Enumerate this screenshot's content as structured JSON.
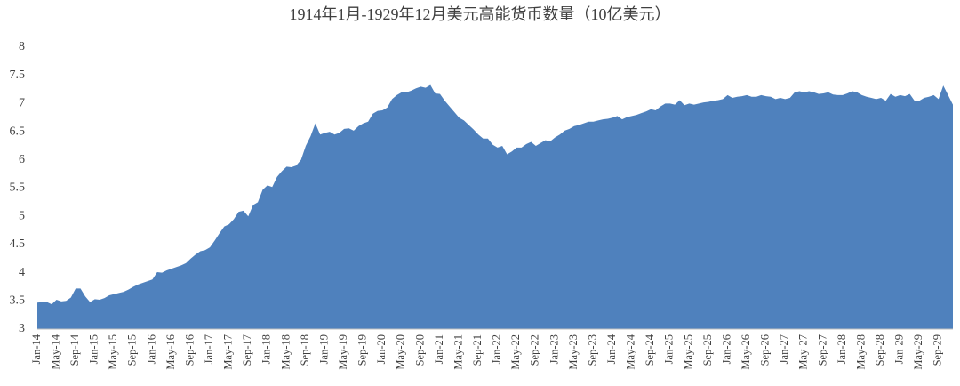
{
  "chart_data": {
    "type": "area",
    "title": "1914年1月-1929年12月美元高能货币数量（10亿美元）",
    "color": "#4f81bd",
    "categories": [
      "Jan-14",
      null,
      null,
      null,
      "May-14",
      null,
      null,
      null,
      "Sep-14",
      null,
      null,
      null,
      "Jan-15",
      null,
      null,
      null,
      "May-15",
      null,
      null,
      null,
      "Sep-15",
      null,
      null,
      null,
      "Jan-16",
      null,
      null,
      null,
      "May-16",
      null,
      null,
      null,
      "Sep-16",
      null,
      null,
      null,
      "Jan-17",
      null,
      null,
      null,
      "May-17",
      null,
      null,
      null,
      "Sep-17",
      null,
      null,
      null,
      "Jan-18",
      null,
      null,
      null,
      "May-18",
      null,
      null,
      null,
      "Sep-18",
      null,
      null,
      null,
      "Jan-19",
      null,
      null,
      null,
      "May-19",
      null,
      null,
      null,
      "Sep-19",
      null,
      null,
      null,
      "Jan-20",
      null,
      null,
      null,
      "May-20",
      null,
      null,
      null,
      "Sep-20",
      null,
      null,
      null,
      "Jan-21",
      null,
      null,
      null,
      "May-21",
      null,
      null,
      null,
      "Sep-21",
      null,
      null,
      null,
      "Jan-22",
      null,
      null,
      null,
      "May-22",
      null,
      null,
      null,
      "Sep-22",
      null,
      null,
      null,
      "Jan-23",
      null,
      null,
      null,
      "May-23",
      null,
      null,
      null,
      "Sep-23",
      null,
      null,
      null,
      "Jan-24",
      null,
      null,
      null,
      "May-24",
      null,
      null,
      null,
      "Sep-24",
      null,
      null,
      null,
      "Jan-25",
      null,
      null,
      null,
      "May-25",
      null,
      null,
      null,
      "Sep-25",
      null,
      null,
      null,
      "Jan-26",
      null,
      null,
      null,
      "May-26",
      null,
      null,
      null,
      "Sep-26",
      null,
      null,
      null,
      "Jan-27",
      null,
      null,
      null,
      "May-27",
      null,
      null,
      null,
      "Sep-27",
      null,
      null,
      null,
      "Jan-28",
      null,
      null,
      null,
      "May-28",
      null,
      null,
      null,
      "Sep-28",
      null,
      null,
      null,
      "Jan-29",
      null,
      null,
      null,
      "May-29",
      null,
      null,
      null,
      "Sep-29",
      null,
      null,
      null
    ],
    "values": [
      3.47,
      3.48,
      3.48,
      3.44,
      3.52,
      3.49,
      3.5,
      3.56,
      3.72,
      3.72,
      3.58,
      3.48,
      3.53,
      3.52,
      3.55,
      3.6,
      3.62,
      3.64,
      3.66,
      3.7,
      3.75,
      3.79,
      3.82,
      3.85,
      3.88,
      4.01,
      4.0,
      4.04,
      4.07,
      4.1,
      4.13,
      4.17,
      4.25,
      4.32,
      4.38,
      4.4,
      4.45,
      4.57,
      4.7,
      4.82,
      4.86,
      4.95,
      5.08,
      5.1,
      5.0,
      5.2,
      5.25,
      5.47,
      5.55,
      5.52,
      5.7,
      5.8,
      5.88,
      5.87,
      5.9,
      6.0,
      6.25,
      6.42,
      6.65,
      6.45,
      6.48,
      6.5,
      6.45,
      6.48,
      6.55,
      6.56,
      6.52,
      6.6,
      6.65,
      6.68,
      6.82,
      6.87,
      6.88,
      6.93,
      7.08,
      7.15,
      7.2,
      7.2,
      7.23,
      7.27,
      7.3,
      7.28,
      7.33,
      7.18,
      7.17,
      7.05,
      6.95,
      6.85,
      6.75,
      6.7,
      6.62,
      6.54,
      6.45,
      6.38,
      6.38,
      6.27,
      6.22,
      6.25,
      6.1,
      6.15,
      6.22,
      6.22,
      6.28,
      6.32,
      6.25,
      6.3,
      6.35,
      6.33,
      6.4,
      6.45,
      6.52,
      6.55,
      6.6,
      6.62,
      6.65,
      6.68,
      6.68,
      6.7,
      6.72,
      6.73,
      6.75,
      6.78,
      6.72,
      6.76,
      6.78,
      6.8,
      6.83,
      6.86,
      6.9,
      6.88,
      6.95,
      7.0,
      7.0,
      6.98,
      7.06,
      6.97,
      7.0,
      6.98,
      7.0,
      7.02,
      7.03,
      7.05,
      7.06,
      7.08,
      7.15,
      7.1,
      7.12,
      7.13,
      7.15,
      7.12,
      7.12,
      7.15,
      7.13,
      7.12,
      7.08,
      7.1,
      7.08,
      7.1,
      7.2,
      7.22,
      7.2,
      7.22,
      7.2,
      7.17,
      7.18,
      7.2,
      7.16,
      7.15,
      7.15,
      7.18,
      7.22,
      7.2,
      7.15,
      7.12,
      7.1,
      7.08,
      7.1,
      7.05,
      7.17,
      7.12,
      7.15,
      7.13,
      7.17,
      7.05,
      7.05,
      7.1,
      7.12,
      7.15,
      7.08,
      7.32,
      7.15,
      6.98
    ],
    "ylim": [
      3,
      8
    ],
    "yticks": [
      3,
      3.5,
      4,
      4.5,
      5,
      5.5,
      6,
      6.5,
      7,
      7.5,
      8
    ]
  }
}
